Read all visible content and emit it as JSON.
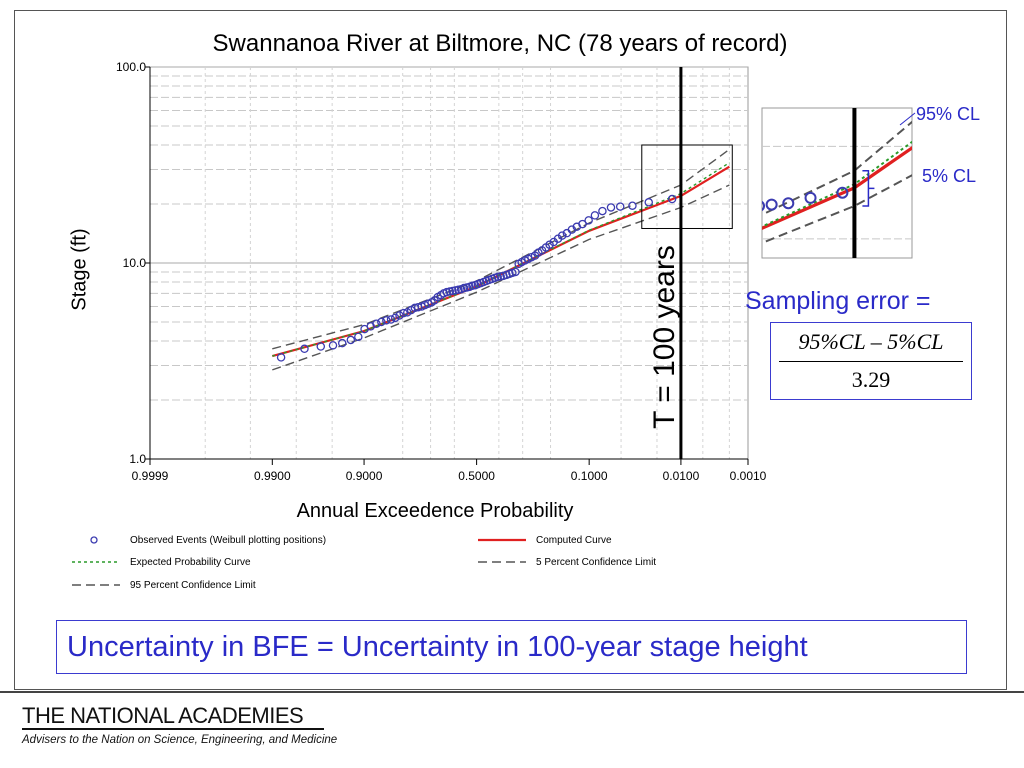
{
  "chart_data": {
    "type": "scatter",
    "title": "Swannanoa River at Biltmore, NC (78 years of record)",
    "xlabel": "Annual Exceedence Probability",
    "ylabel": "Stage (ft)",
    "x_scale": "normal-probability (reversed)",
    "y_scale": "log",
    "ylim": [
      1.0,
      100.0
    ],
    "xlim": [
      0.9999,
      0.001
    ],
    "x_ticks": [
      "0.9999",
      "0.9900",
      "0.9000",
      "0.5000",
      "0.1000",
      "0.0100",
      "0.0010"
    ],
    "x_tick_values": [
      0.9999,
      0.99,
      0.9,
      0.5,
      0.1,
      0.01,
      0.001
    ],
    "y_ticks": [
      "1.0",
      "10.0",
      "100.0"
    ],
    "y_tick_values": [
      1.0,
      10.0,
      100.0
    ],
    "grid": true,
    "series": [
      {
        "name": "Observed Events (Weibull plotting positions)",
        "marker": "circle",
        "color": "#3b3bb0",
        "points": [
          [
            0.987,
            3.3
          ],
          [
            0.975,
            3.65
          ],
          [
            0.962,
            3.75
          ],
          [
            0.949,
            3.8
          ],
          [
            0.937,
            3.9
          ],
          [
            0.924,
            4.05
          ],
          [
            0.911,
            4.2
          ],
          [
            0.899,
            4.6
          ],
          [
            0.886,
            4.75
          ],
          [
            0.873,
            4.9
          ],
          [
            0.861,
            5.0
          ],
          [
            0.848,
            5.1
          ],
          [
            0.835,
            5.15
          ],
          [
            0.823,
            5.25
          ],
          [
            0.81,
            5.4
          ],
          [
            0.797,
            5.55
          ],
          [
            0.785,
            5.6
          ],
          [
            0.772,
            5.75
          ],
          [
            0.759,
            5.9
          ],
          [
            0.747,
            5.95
          ],
          [
            0.734,
            6.0
          ],
          [
            0.722,
            6.1
          ],
          [
            0.709,
            6.2
          ],
          [
            0.696,
            6.3
          ],
          [
            0.684,
            6.45
          ],
          [
            0.671,
            6.7
          ],
          [
            0.658,
            6.85
          ],
          [
            0.646,
            7.0
          ],
          [
            0.633,
            7.1
          ],
          [
            0.62,
            7.15
          ],
          [
            0.608,
            7.2
          ],
          [
            0.595,
            7.25
          ],
          [
            0.582,
            7.3
          ],
          [
            0.57,
            7.35
          ],
          [
            0.557,
            7.45
          ],
          [
            0.544,
            7.5
          ],
          [
            0.532,
            7.55
          ],
          [
            0.519,
            7.65
          ],
          [
            0.506,
            7.7
          ],
          [
            0.494,
            7.8
          ],
          [
            0.481,
            7.9
          ],
          [
            0.468,
            8.0
          ],
          [
            0.456,
            8.1
          ],
          [
            0.443,
            8.2
          ],
          [
            0.43,
            8.3
          ],
          [
            0.418,
            8.4
          ],
          [
            0.405,
            8.5
          ],
          [
            0.392,
            8.55
          ],
          [
            0.38,
            8.6
          ],
          [
            0.367,
            8.7
          ],
          [
            0.354,
            8.8
          ],
          [
            0.342,
            8.9
          ],
          [
            0.329,
            9.0
          ],
          [
            0.316,
            9.9
          ],
          [
            0.304,
            10.1
          ],
          [
            0.291,
            10.3
          ],
          [
            0.278,
            10.5
          ],
          [
            0.266,
            10.7
          ],
          [
            0.253,
            10.9
          ],
          [
            0.241,
            11.3
          ],
          [
            0.228,
            11.6
          ],
          [
            0.215,
            12.0
          ],
          [
            0.203,
            12.4
          ],
          [
            0.19,
            12.8
          ],
          [
            0.177,
            13.3
          ],
          [
            0.165,
            13.8
          ],
          [
            0.152,
            14.2
          ],
          [
            0.139,
            14.8
          ],
          [
            0.127,
            15.3
          ],
          [
            0.114,
            15.8
          ],
          [
            0.101,
            16.5
          ],
          [
            0.089,
            17.5
          ],
          [
            0.076,
            18.4
          ],
          [
            0.063,
            19.2
          ],
          [
            0.051,
            19.4
          ],
          [
            0.038,
            19.6
          ],
          [
            0.025,
            20.4
          ],
          [
            0.013,
            21.2
          ]
        ]
      },
      {
        "name": "Computed Curve",
        "line": "solid",
        "color": "#e02020",
        "points": [
          [
            0.99,
            3.35
          ],
          [
            0.9,
            4.5
          ],
          [
            0.5,
            7.6
          ],
          [
            0.1,
            14.6
          ],
          [
            0.01,
            22.0
          ],
          [
            0.002,
            31.0
          ]
        ]
      },
      {
        "name": "Expected Probability Curve",
        "line": "dotted",
        "color": "#2a9a2a",
        "points": [
          [
            0.99,
            3.35
          ],
          [
            0.9,
            4.5
          ],
          [
            0.5,
            7.6
          ],
          [
            0.1,
            14.7
          ],
          [
            0.01,
            22.6
          ],
          [
            0.002,
            32.5
          ]
        ]
      },
      {
        "name": "5 Percent Confidence Limit",
        "line": "dashed",
        "color": "#555555",
        "points": [
          [
            0.99,
            3.65
          ],
          [
            0.9,
            4.85
          ],
          [
            0.5,
            8.1
          ],
          [
            0.1,
            16.0
          ],
          [
            0.01,
            25.0
          ],
          [
            0.002,
            38.0
          ]
        ]
      },
      {
        "name": "95 Percent Confidence Limit",
        "line": "dashed",
        "color": "#555555",
        "points": [
          [
            0.99,
            2.85
          ],
          [
            0.9,
            4.15
          ],
          [
            0.5,
            7.1
          ],
          [
            0.1,
            13.2
          ],
          [
            0.01,
            19.2
          ],
          [
            0.002,
            25.0
          ]
        ]
      }
    ],
    "annotations": {
      "vertical_line_aep": 0.01,
      "vertical_line_label": "T = 100 years",
      "highlight_box": {
        "x_range": [
          0.03,
          0.0018
        ],
        "y_range": [
          15.0,
          40.0
        ]
      }
    },
    "legend_placement": "bottom"
  },
  "legend": [
    {
      "label": "Observed Events (Weibull plotting positions)"
    },
    {
      "label": "Computed Curve"
    },
    {
      "label": "Expected Probability Curve"
    },
    {
      "label": "5 Percent Confidence Limit"
    },
    {
      "label": "95 Percent Confidence Limit"
    }
  ],
  "inset": {
    "label_95": "95% CL",
    "label_5": "5% CL"
  },
  "sampling": {
    "label": "Sampling error =",
    "numerator": "95%CL – 5%CL",
    "denominator": "3.29"
  },
  "uncertainty_statement": "Uncertainty in BFE = Uncertainty in 100-year stage height",
  "footer": {
    "org_name": "THE NATIONAL ACADEMIES",
    "tagline": "Advisers to the Nation on Science, Engineering, and Medicine"
  },
  "colors": {
    "accent_blue": "#2a2ac8",
    "computed_red": "#e02020",
    "expected_green": "#2a9a2a",
    "ci_gray": "#555555",
    "marker_blue": "#3b3bb0"
  }
}
